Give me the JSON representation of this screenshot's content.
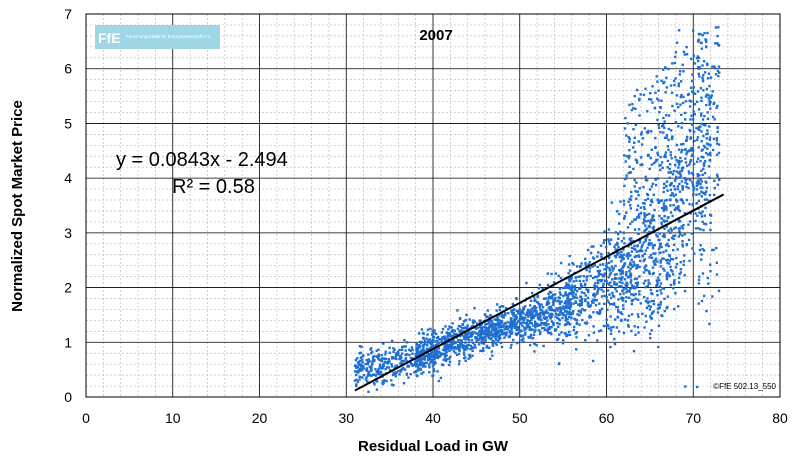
{
  "chart_data": {
    "type": "scatter",
    "title": "2007",
    "xlabel": "Residual Load in GW",
    "ylabel": "Normalized Spot Market Price",
    "xlim": [
      0,
      80
    ],
    "ylim": [
      0,
      7
    ],
    "xticks": [
      0,
      10,
      20,
      30,
      40,
      50,
      60,
      70,
      80
    ],
    "yticks": [
      0,
      1,
      2,
      3,
      4,
      5,
      6,
      7
    ],
    "grid": true,
    "minor_grid": true,
    "series": [
      {
        "color": "#1f6fd1",
        "marker": "square",
        "description_points": [
          [
            31,
            0.3
          ],
          [
            33,
            0.6
          ],
          [
            35,
            0.9
          ],
          [
            37,
            1.0
          ],
          [
            40,
            1.1
          ],
          [
            43,
            1.3
          ],
          [
            46,
            1.5
          ],
          [
            50,
            1.6
          ],
          [
            53,
            1.8
          ],
          [
            56,
            2.0
          ],
          [
            59,
            2.3
          ],
          [
            62,
            2.6
          ],
          [
            65,
            3.0
          ],
          [
            67,
            3.6
          ],
          [
            69,
            4.0
          ],
          [
            71,
            3.3
          ],
          [
            64,
            4.8
          ],
          [
            66,
            5.6
          ],
          [
            68,
            6.3
          ],
          [
            60,
            1.3
          ],
          [
            65,
            1.6
          ]
        ]
      }
    ],
    "trendline": {
      "slope": 0.0843,
      "intercept": -2.494,
      "x_range": [
        31,
        73.5
      ],
      "equation_label": "y = 0.0843x - 2.494",
      "r2_label": "R² = 0.58",
      "r2": 0.58,
      "color": "#000000"
    },
    "annotations": {
      "copyright": "©FfE 502.13_550",
      "logo_text": "FfE",
      "logo_subtext": "Forschungsstelle für Energiewirtschaft e.V."
    }
  }
}
